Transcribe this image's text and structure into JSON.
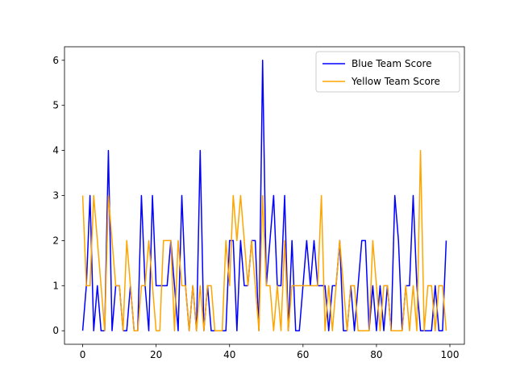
{
  "chart_data": {
    "type": "line",
    "title": "",
    "xlabel": "",
    "ylabel": "",
    "xlim": [
      -4.95,
      103.95
    ],
    "ylim": [
      -0.3,
      6.3
    ],
    "x_ticks": [
      0,
      20,
      40,
      60,
      80,
      100
    ],
    "y_ticks": [
      0,
      1,
      2,
      3,
      4,
      5,
      6
    ],
    "grid": false,
    "legend_position": "top-right",
    "series": [
      {
        "name": "Blue Team Score",
        "color": "#0000ff",
        "values": [
          0,
          1,
          3,
          0,
          1,
          0,
          0,
          4,
          0,
          1,
          1,
          0,
          0,
          1,
          0,
          0,
          3,
          1,
          0,
          3,
          1,
          1,
          1,
          1,
          2,
          1,
          0,
          3,
          1,
          0,
          1,
          0,
          4,
          0,
          1,
          0,
          0,
          0,
          0,
          0,
          2,
          2,
          0,
          2,
          1,
          1,
          2,
          2,
          0,
          6,
          1,
          2,
          3,
          1,
          1,
          3,
          0,
          2,
          0,
          0,
          1,
          2,
          1,
          2,
          1,
          1,
          1,
          0,
          1,
          1,
          2,
          0,
          0,
          1,
          0,
          1,
          2,
          2,
          0,
          1,
          0,
          1,
          0,
          1,
          0,
          3,
          2,
          0,
          1,
          1,
          3,
          1,
          0,
          0,
          0,
          0,
          1,
          0,
          0,
          2
        ]
      },
      {
        "name": "Yellow Team Score",
        "color": "#ffa500",
        "values": [
          3,
          1,
          1,
          3,
          2,
          1,
          0,
          3,
          2,
          1,
          1,
          0,
          2,
          1,
          0,
          0,
          1,
          1,
          2,
          1,
          0,
          0,
          2,
          2,
          2,
          0,
          2,
          1,
          1,
          0,
          1,
          0,
          1,
          0,
          1,
          1,
          0,
          0,
          0,
          2,
          1,
          3,
          2,
          3,
          2,
          1,
          2,
          1,
          0,
          3,
          1,
          1,
          0,
          1,
          0,
          2,
          0,
          1,
          1,
          1,
          1,
          1,
          1,
          1,
          1,
          3,
          0,
          1,
          0,
          1,
          2,
          1,
          0,
          1,
          1,
          0,
          0,
          0,
          0,
          2,
          1,
          0,
          1,
          1,
          0,
          0,
          0,
          0,
          1,
          0,
          1,
          0,
          4,
          0,
          1,
          1,
          0,
          1,
          1,
          0
        ]
      }
    ]
  }
}
